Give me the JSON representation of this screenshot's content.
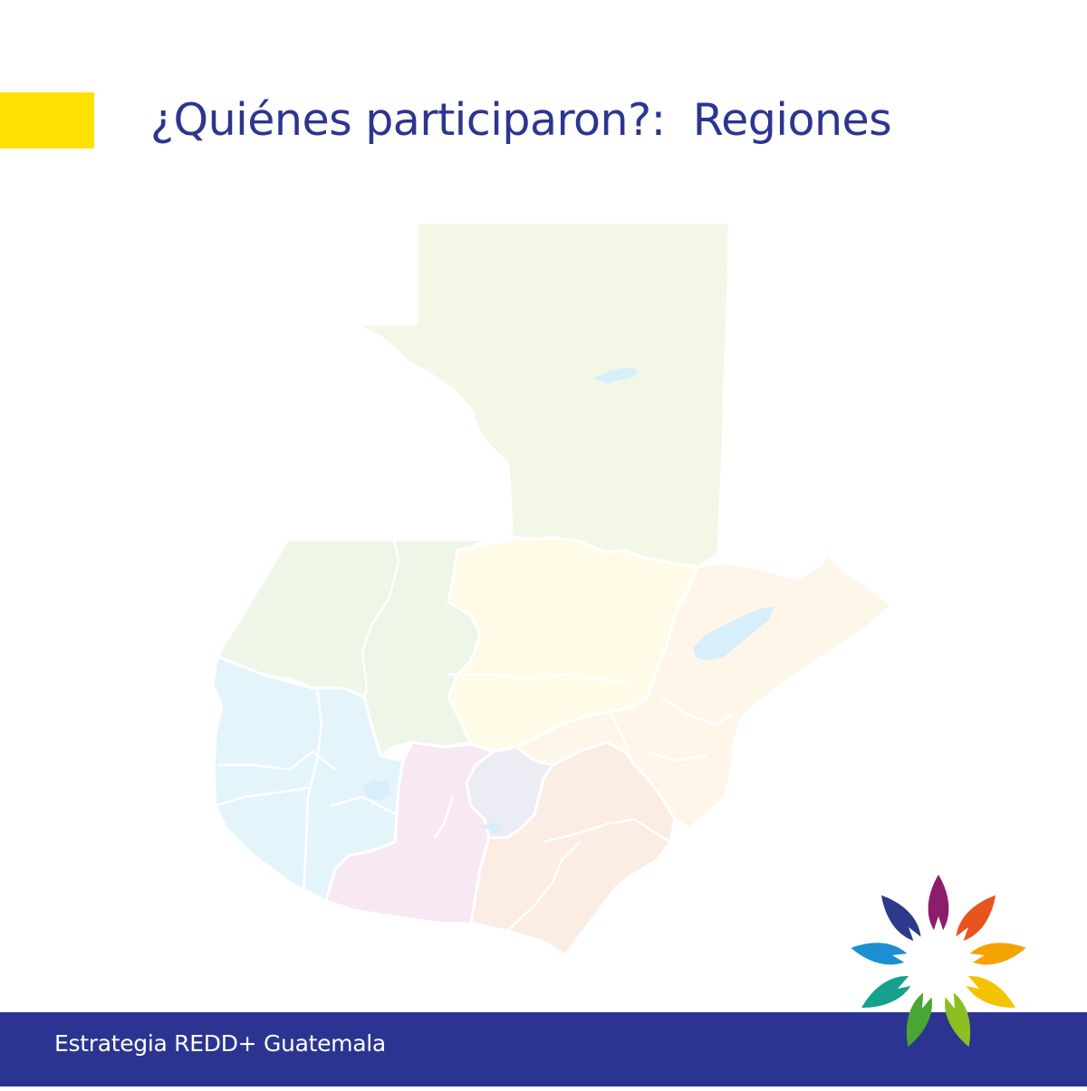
{
  "header": {
    "title": "¿Quiénes participaron?:  Regiones",
    "accent_color": "#ffe100",
    "title_color": "#2c3590"
  },
  "map": {
    "country": "Guatemala",
    "region_colors": {
      "peten": "#f3f8e6",
      "northwest": "#eef6e8",
      "west": "#e4f4fb",
      "north_central": "#fffbe6",
      "northeast": "#fff6ea",
      "southwest_central": "#f7e8f3",
      "metropolitan": "#ececf4",
      "southeast": "#fbece4",
      "water": "#d8eefa"
    }
  },
  "footer": {
    "text": "Estrategia REDD+ Guatemala",
    "background": "#2b3591"
  },
  "logo": {
    "icon": "redd-flower-logo-icon",
    "petal_colors": [
      "#8c1d6b",
      "#e8541e",
      "#f5a300",
      "#f3c300",
      "#8dbf22",
      "#4aa632",
      "#17a08e",
      "#1b8fd2",
      "#2d3a8c"
    ]
  }
}
